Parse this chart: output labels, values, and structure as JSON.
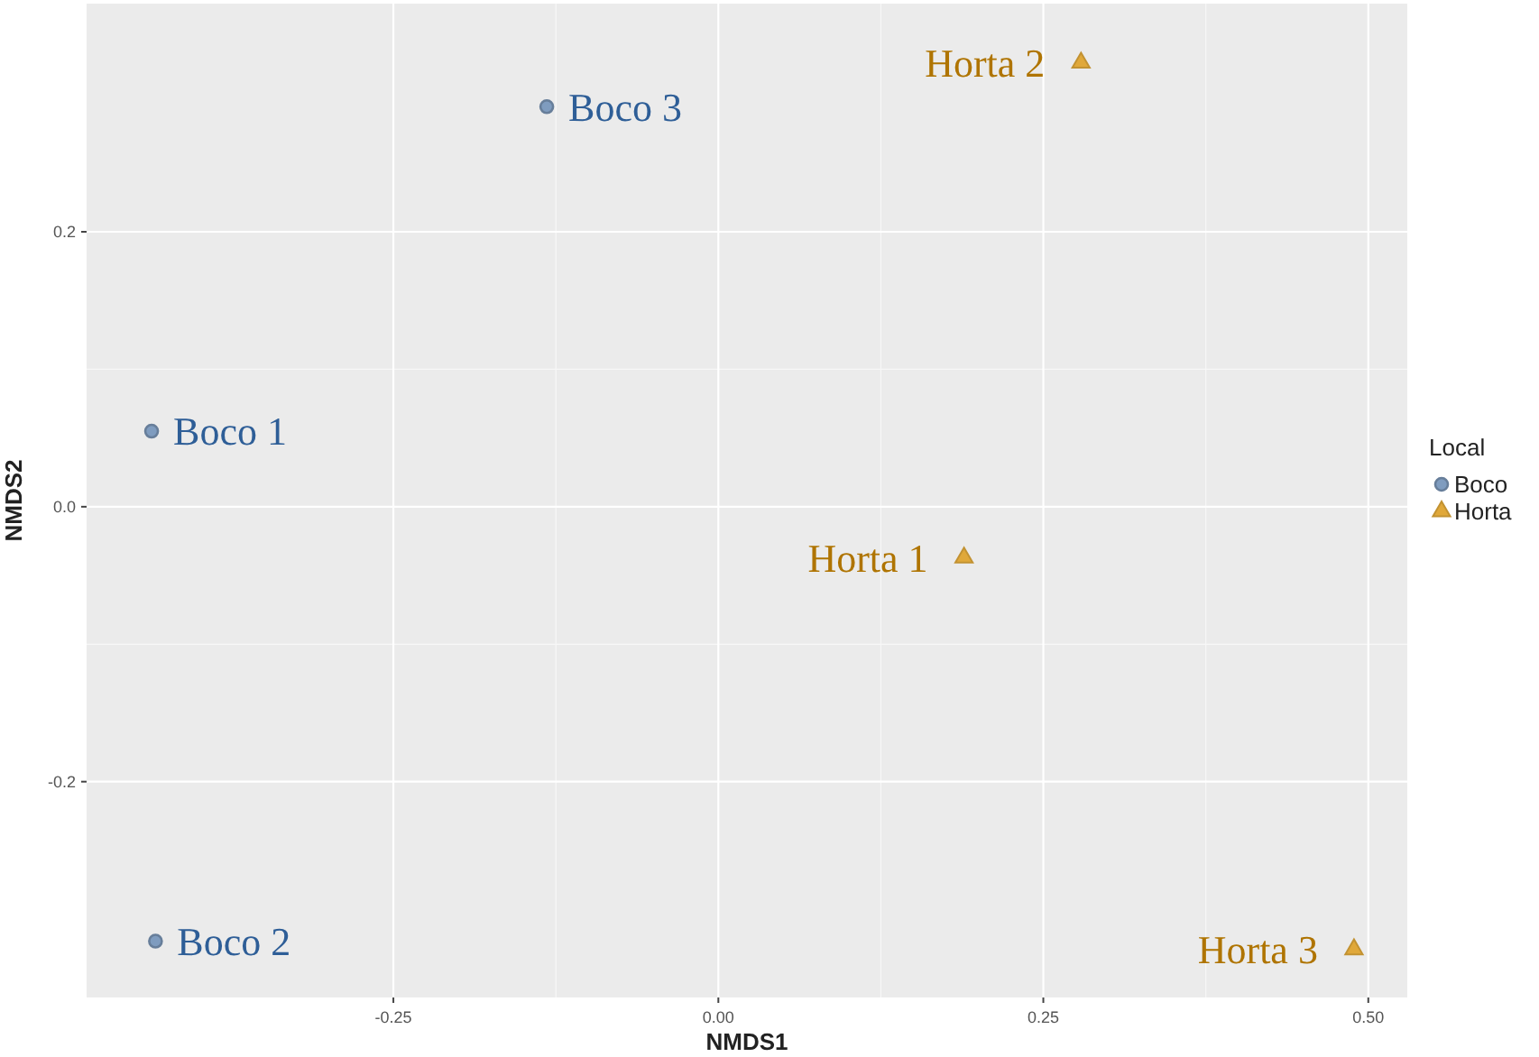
{
  "chart_data": {
    "type": "scatter",
    "xlabel": "NMDS1",
    "ylabel": "NMDS2",
    "legend_title": "Local",
    "legend": "right",
    "grid": true,
    "xlim": [
      -0.486,
      0.53
    ],
    "ylim": [
      -0.357,
      0.366
    ],
    "xticks": [
      {
        "value": -0.25,
        "label": "-0.25"
      },
      {
        "value": 0,
        "label": "0.00"
      },
      {
        "value": 0.25,
        "label": "0.25"
      },
      {
        "value": 0.5,
        "label": "0.50"
      }
    ],
    "yticks": [
      {
        "value": -0.2,
        "label": "-0.2"
      },
      {
        "value": 0,
        "label": "0.0"
      },
      0.2
    ],
    "series": [
      {
        "name": "Boco",
        "color": "#7f9cbf",
        "marker": "circle",
        "x": [
          -0.436,
          -0.433,
          -0.132
        ],
        "values": [
          0.055,
          -0.316,
          0.291
        ]
      },
      {
        "name": "Horta",
        "color": "#e0a83a",
        "marker": "triangle",
        "x": [
          0.189,
          0.279,
          0.489
        ],
        "values": [
          -0.037,
          0.323,
          -0.322
        ]
      }
    ],
    "annotations": [
      {
        "text": "Boco 1",
        "x": -0.436,
        "y": 0.055
      },
      {
        "text": "Boco 2",
        "x": -0.433,
        "y": -0.316
      },
      {
        "text": "Boco 3",
        "x": -0.132,
        "y": 0.291
      },
      {
        "text": "Horta 1",
        "x": 0.189,
        "y": -0.037
      },
      {
        "text": "Horta 2",
        "x": 0.279,
        "y": 0.323
      },
      {
        "text": "Horta 3",
        "x": 0.489,
        "y": -0.322
      }
    ]
  }
}
